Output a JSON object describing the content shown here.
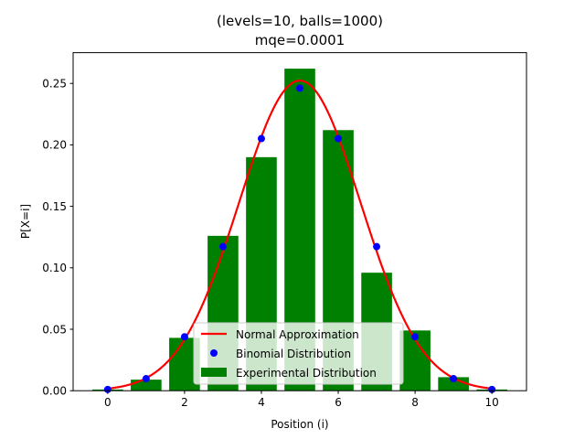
{
  "chart_data": {
    "type": "bar",
    "title_lines": [
      "(levels=10, balls=1000)",
      "mqe=0.0001"
    ],
    "xlabel": "Position (i)",
    "ylabel": "P[X=i]",
    "xlim": [
      -0.9,
      10.9
    ],
    "ylim": [
      0,
      0.275
    ],
    "xticks": [
      0,
      2,
      4,
      6,
      8,
      10
    ],
    "xtick_labels": [
      "0",
      "2",
      "4",
      "6",
      "8",
      "10"
    ],
    "yticks": [
      0,
      0.05,
      0.1,
      0.15,
      0.2,
      0.25
    ],
    "ytick_labels": [
      "0.00",
      "0.05",
      "0.10",
      "0.15",
      "0.20",
      "0.25"
    ],
    "grid": false,
    "legend": {
      "placement": "lower-center",
      "entries": [
        {
          "label": "Normal Approximation",
          "kind": "line",
          "color": "#ff0000"
        },
        {
          "label": "Binomial Distribution",
          "kind": "marker",
          "color": "#0000ff"
        },
        {
          "label": "Experimental Distribution",
          "kind": "patch",
          "color": "#008000"
        }
      ]
    },
    "series": [
      {
        "name": "Experimental Distribution",
        "kind": "bar",
        "color": "#008000",
        "x": [
          0,
          1,
          2,
          3,
          4,
          5,
          6,
          7,
          8,
          9,
          10
        ],
        "values": [
          0.001,
          0.009,
          0.043,
          0.126,
          0.19,
          0.262,
          0.212,
          0.096,
          0.049,
          0.011,
          0.001
        ]
      },
      {
        "name": "Binomial Distribution",
        "kind": "scatter",
        "color": "#0000ff",
        "x": [
          0,
          1,
          2,
          3,
          4,
          5,
          6,
          7,
          8,
          9,
          10
        ],
        "values": [
          0.001,
          0.0098,
          0.0439,
          0.1172,
          0.2051,
          0.2461,
          0.2051,
          0.1172,
          0.0439,
          0.0098,
          0.001
        ]
      },
      {
        "name": "Normal Approximation",
        "kind": "line",
        "color": "#ff0000",
        "mean": 5,
        "std": 1.5811,
        "x_range": [
          0,
          10
        ]
      }
    ]
  }
}
